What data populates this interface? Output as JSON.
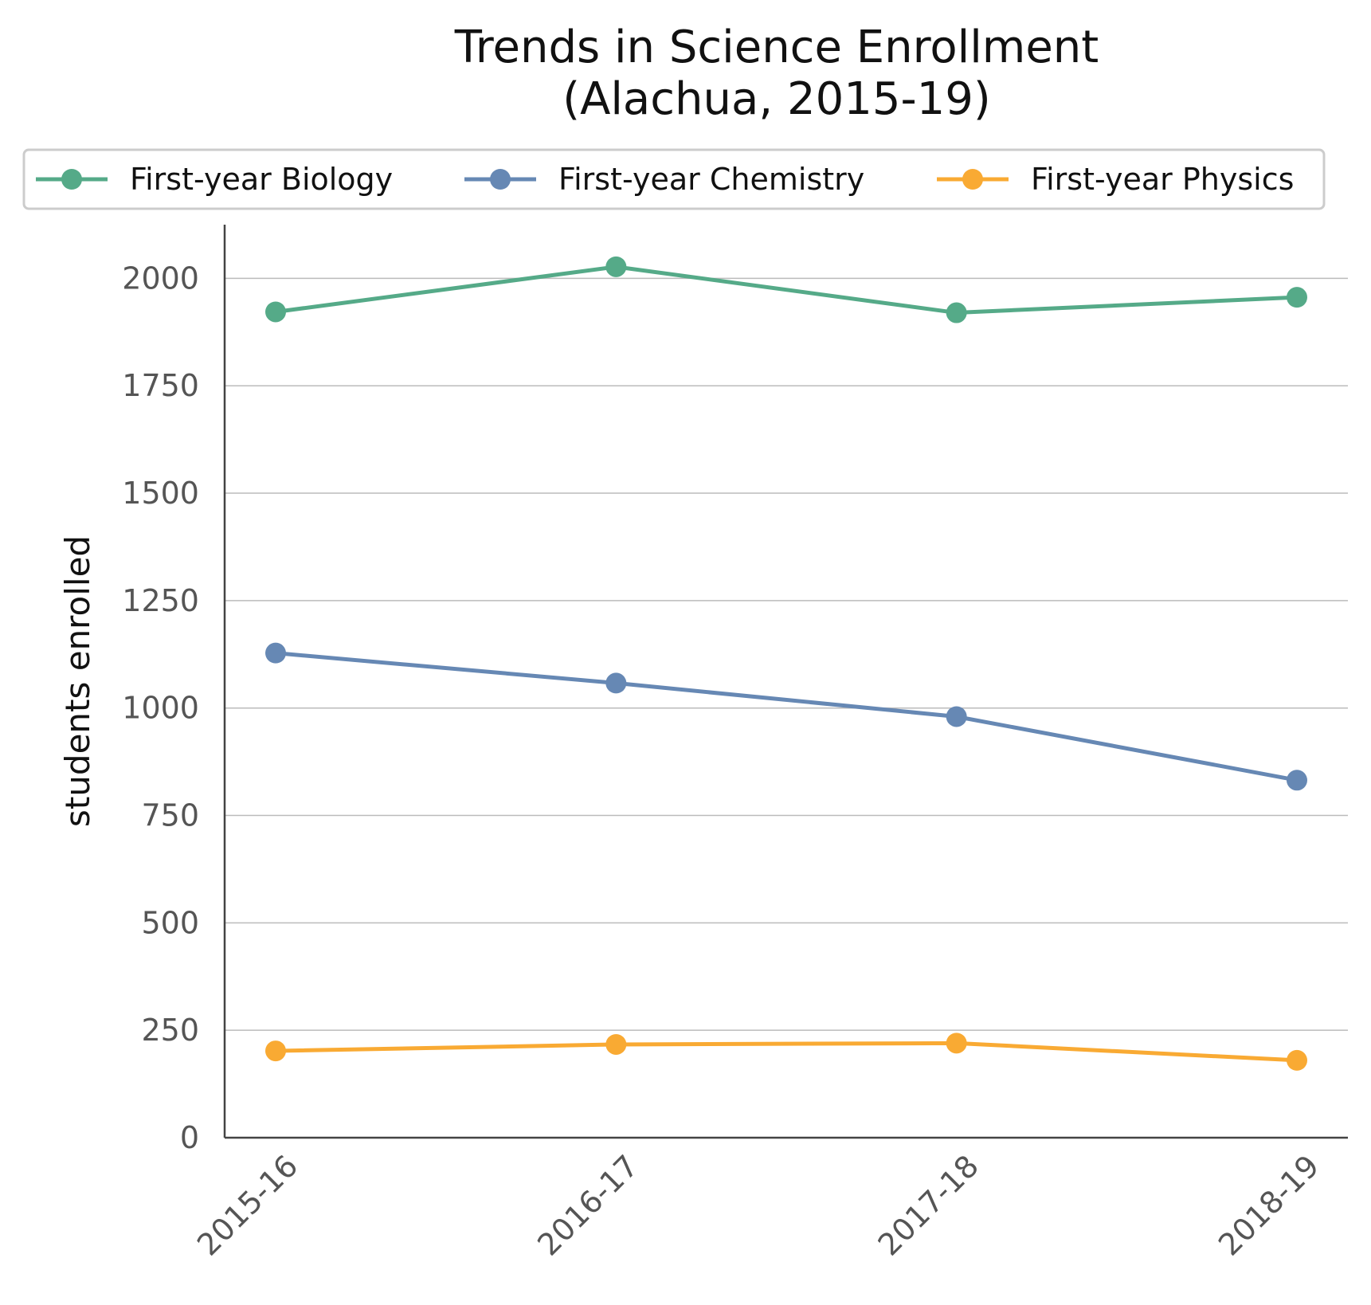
{
  "chart_data": {
    "type": "line",
    "title_line1": "Trends in Science Enrollment",
    "title_line2": "(Alachua, 2015-19)",
    "xlabel": "",
    "ylabel": "students enrolled",
    "categories": [
      "2015-16",
      "2016-17",
      "2017-18",
      "2018-19"
    ],
    "ylim": [
      0,
      2125
    ],
    "yticks": [
      0,
      250,
      500,
      750,
      1000,
      1250,
      1500,
      1750,
      2000
    ],
    "grid": "horizontal",
    "legend_position": "top",
    "series": [
      {
        "name": "First-year Biology",
        "color": "#55aa88",
        "values": [
          1922,
          2027,
          1920,
          1956
        ]
      },
      {
        "name": "First-year Chemistry",
        "color": "#6688b4",
        "values": [
          1128,
          1058,
          980,
          832
        ]
      },
      {
        "name": "First-year Physics",
        "color": "#f9aa33",
        "values": [
          202,
          217,
          220,
          180
        ]
      }
    ]
  }
}
